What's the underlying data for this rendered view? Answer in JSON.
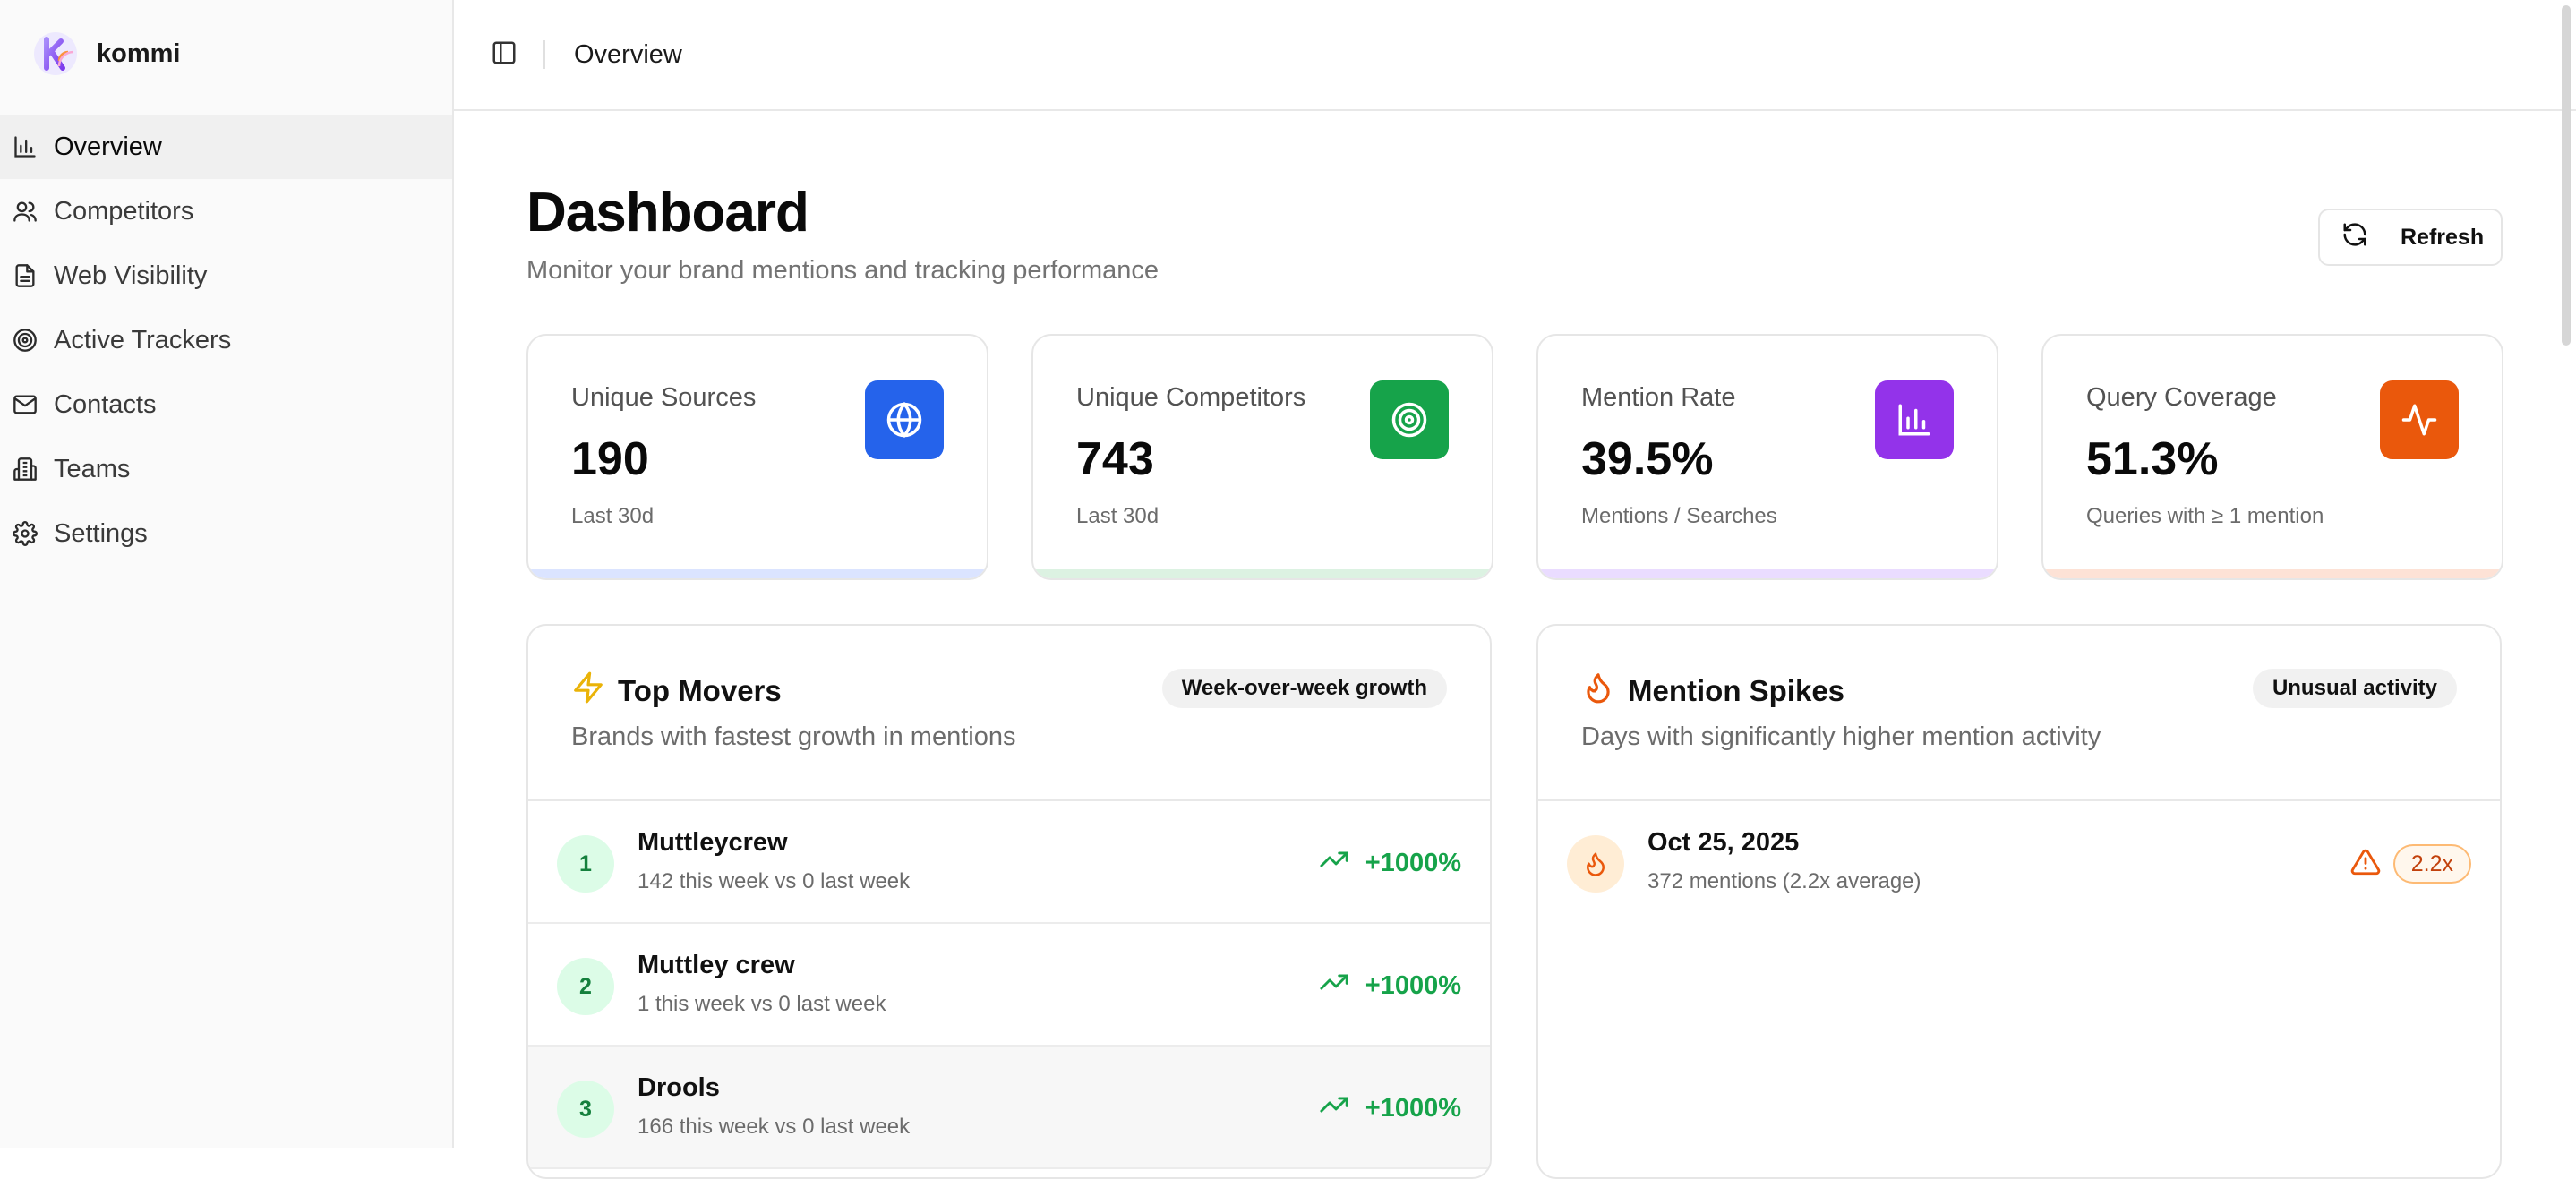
{
  "app": {
    "name": "kommi",
    "logo_letter": "K",
    "accent": "#8b5cf6"
  },
  "sidebar": {
    "items": [
      {
        "label": "Overview",
        "icon": "bar-chart-icon",
        "active": true
      },
      {
        "label": "Competitors",
        "icon": "users-icon",
        "active": false
      },
      {
        "label": "Web Visibility",
        "icon": "file-text-icon",
        "active": false
      },
      {
        "label": "Active Trackers",
        "icon": "target-icon",
        "active": false
      },
      {
        "label": "Contacts",
        "icon": "mail-icon",
        "active": false
      },
      {
        "label": "Teams",
        "icon": "building-icon",
        "active": false
      },
      {
        "label": "Settings",
        "icon": "gear-icon",
        "active": false
      }
    ]
  },
  "header": {
    "breadcrumb": "Overview",
    "toggle_icon": "sidebar-toggle-icon"
  },
  "page": {
    "title": "Dashboard",
    "subtitle": "Monitor your brand mentions and tracking performance",
    "refresh_label": "Refresh"
  },
  "stats": [
    {
      "label": "Unique Sources",
      "value": "190",
      "note": "Last 30d",
      "icon": "globe-icon",
      "color": "#2563eb",
      "bar": "#dbe4ff"
    },
    {
      "label": "Unique Competitors",
      "value": "743",
      "note": "Last 30d",
      "icon": "target-icon",
      "color": "#16a34a",
      "bar": "#dcf2e2"
    },
    {
      "label": "Mention Rate",
      "value": "39.5%",
      "note": "Mentions / Searches",
      "icon": "bar-chart-icon",
      "color": "#9333ea",
      "bar": "#eadcff"
    },
    {
      "label": "Query Coverage",
      "value": "51.3%",
      "note": "Queries with ≥ 1 mention",
      "icon": "activity-icon",
      "color": "#ea580c",
      "bar": "#fde2d6"
    }
  ],
  "top_movers": {
    "title": "Top Movers",
    "pill": "Week-over-week growth",
    "description": "Brands with fastest growth in mentions",
    "rows": [
      {
        "rank": "1",
        "name": "Muttleycrew",
        "detail": "142 this week vs 0 last week",
        "growth": "+1000%"
      },
      {
        "rank": "2",
        "name": "Muttley crew",
        "detail": "1 this week vs 0 last week",
        "growth": "+1000%"
      },
      {
        "rank": "3",
        "name": "Drools",
        "detail": "166 this week vs 0 last week",
        "growth": "+1000%"
      }
    ]
  },
  "mention_spikes": {
    "title": "Mention Spikes",
    "pill": "Unusual activity",
    "description": "Days with significantly higher mention activity",
    "rows": [
      {
        "date": "Oct 25, 2025",
        "detail": "372 mentions (2.2x average)",
        "multiplier": "2.2x"
      }
    ]
  }
}
